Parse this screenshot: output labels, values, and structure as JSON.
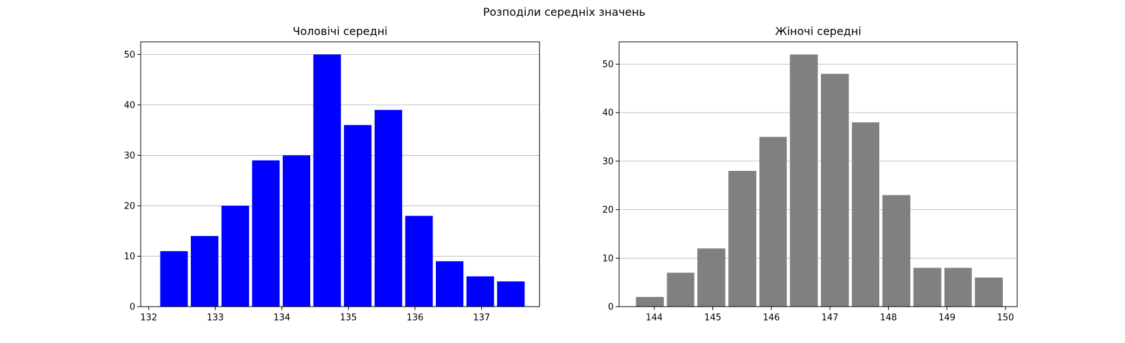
{
  "suptitle": "Розподіли середніх значень",
  "chart_data": [
    {
      "type": "bar",
      "title": "Чоловічі середні",
      "xlabel": "",
      "ylabel": "",
      "color": "#0000ff",
      "xlim": [
        131.88,
        137.87
      ],
      "ylim": [
        0,
        52.5
      ],
      "xticks": [
        132,
        133,
        134,
        135,
        136,
        137
      ],
      "yticks": [
        0,
        10,
        20,
        30,
        40,
        50
      ],
      "grid": "y",
      "bins": [
        {
          "x0": 132.15,
          "x1": 132.61,
          "value": 11
        },
        {
          "x0": 132.61,
          "x1": 133.07,
          "value": 14
        },
        {
          "x0": 133.07,
          "x1": 133.53,
          "value": 20
        },
        {
          "x0": 133.53,
          "x1": 133.99,
          "value": 29
        },
        {
          "x0": 133.99,
          "x1": 134.45,
          "value": 30
        },
        {
          "x0": 134.45,
          "x1": 134.91,
          "value": 50
        },
        {
          "x0": 134.91,
          "x1": 135.37,
          "value": 36
        },
        {
          "x0": 135.37,
          "x1": 135.83,
          "value": 39
        },
        {
          "x0": 135.83,
          "x1": 136.29,
          "value": 18
        },
        {
          "x0": 136.29,
          "x1": 136.75,
          "value": 9
        },
        {
          "x0": 136.75,
          "x1": 137.21,
          "value": 6
        },
        {
          "x0": 137.21,
          "x1": 137.67,
          "value": 5
        }
      ]
    },
    {
      "type": "bar",
      "title": "Жіночі середні",
      "xlabel": "",
      "ylabel": "",
      "color": "#808080",
      "xlim": [
        143.4,
        150.2
      ],
      "ylim": [
        0,
        54.6
      ],
      "xticks": [
        144,
        145,
        146,
        147,
        148,
        149,
        150
      ],
      "yticks": [
        0,
        10,
        20,
        30,
        40,
        50
      ],
      "grid": "y",
      "bins": [
        {
          "x0": 143.66,
          "x1": 144.19,
          "value": 2
        },
        {
          "x0": 144.19,
          "x1": 144.71,
          "value": 7
        },
        {
          "x0": 144.71,
          "x1": 145.24,
          "value": 12
        },
        {
          "x0": 145.24,
          "x1": 145.77,
          "value": 28
        },
        {
          "x0": 145.77,
          "x1": 146.29,
          "value": 35
        },
        {
          "x0": 146.29,
          "x1": 146.82,
          "value": 52
        },
        {
          "x0": 146.82,
          "x1": 147.35,
          "value": 48
        },
        {
          "x0": 147.35,
          "x1": 147.87,
          "value": 38
        },
        {
          "x0": 147.87,
          "x1": 148.4,
          "value": 23
        },
        {
          "x0": 148.4,
          "x1": 148.93,
          "value": 8
        },
        {
          "x0": 148.93,
          "x1": 149.45,
          "value": 8
        },
        {
          "x0": 149.45,
          "x1": 149.98,
          "value": 6
        }
      ]
    }
  ]
}
